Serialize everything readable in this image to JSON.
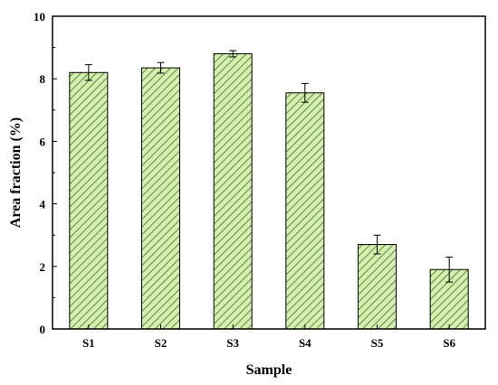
{
  "chart_data": {
    "type": "bar",
    "title": "",
    "xlabel": "Sample",
    "ylabel": "Area fraction (%)",
    "categories": [
      "S1",
      "S2",
      "S3",
      "S4",
      "S5",
      "S6"
    ],
    "values": [
      8.2,
      8.35,
      8.8,
      7.55,
      2.7,
      1.9
    ],
    "errors": [
      0.25,
      0.17,
      0.1,
      0.3,
      0.3,
      0.4
    ],
    "ylim": [
      0,
      10
    ],
    "yticks": [
      "0",
      "2",
      "4",
      "6",
      "8",
      "10"
    ],
    "grid": false,
    "legend": "none",
    "colors": {
      "bar_fill": "#d4efb0",
      "hatch": "#3f6f23",
      "bar_edge": "#000000",
      "axis": "#000000"
    }
  }
}
